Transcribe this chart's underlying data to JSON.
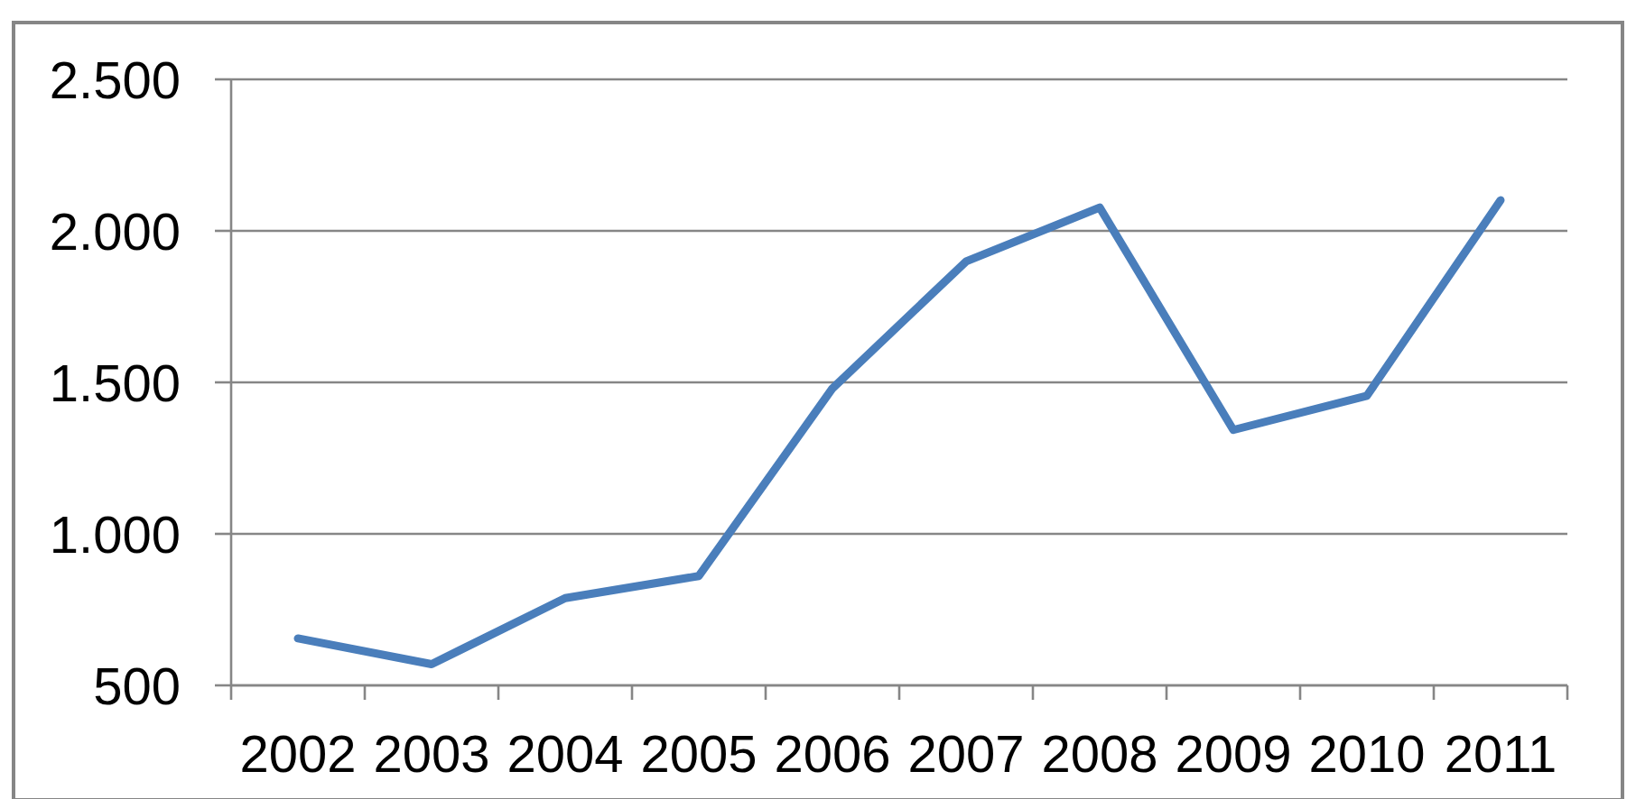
{
  "chart_data": {
    "type": "line",
    "categories": [
      "2002",
      "2003",
      "2004",
      "2005",
      "2006",
      "2007",
      "2008",
      "2009",
      "2010",
      "2011"
    ],
    "series": [
      {
        "color": "#4a7ebb",
        "values": [
          655,
          570,
          788,
          861,
          1480,
          1899,
          2077,
          1343,
          1456,
          2101
        ]
      }
    ],
    "ylim": [
      500,
      2500
    ],
    "yticks": [
      500,
      {
        "value": 1000,
        "label": "1.000"
      },
      {
        "value": 1500,
        "label": "1.500"
      },
      {
        "value": 2000,
        "label": "2.000"
      },
      {
        "value": 2500,
        "label": "2.500"
      }
    ],
    "grid": "y"
  }
}
